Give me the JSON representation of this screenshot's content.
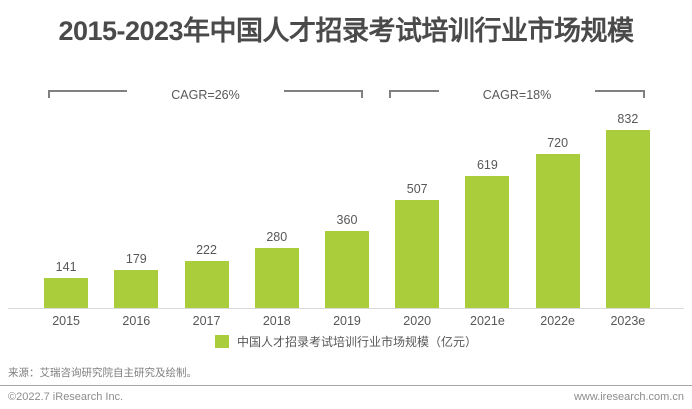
{
  "chart_data": {
    "type": "bar",
    "title": "2015-2023年中国人才招录考试培训行业市场规模",
    "categories": [
      "2015",
      "2016",
      "2017",
      "2018",
      "2019",
      "2020",
      "2021e",
      "2022e",
      "2023e"
    ],
    "values": [
      141,
      179,
      222,
      280,
      360,
      507,
      619,
      720,
      832
    ],
    "series": [
      {
        "name": "中国人才招录考试培训行业市场规模（亿元）",
        "values": [
          141,
          179,
          222,
          280,
          360,
          507,
          619,
          720,
          832
        ]
      }
    ],
    "unit": "亿元",
    "ylim": [
      0,
      900
    ],
    "grid": false,
    "legend_position": "bottom",
    "annotations": [
      {
        "label": "CAGR=26%",
        "from": "2015",
        "to": "2019"
      },
      {
        "label": "CAGR=18%",
        "from": "2020",
        "to": "2023e"
      }
    ]
  },
  "legend": {
    "label": "中国人才招录考试培训行业市场规模（亿元）"
  },
  "footer": {
    "source": "来源：艾瑞咨询研究院自主研究及绘制。",
    "copyright": "©2022.7 iResearch Inc.",
    "website": "www.iresearch.com.cn"
  },
  "colors": {
    "bar": "#a9cd3b",
    "title_text": "#4a4a4a",
    "label_text": "#595757",
    "bracket_line": "#808080",
    "footer_text": "#8c8c8c"
  }
}
